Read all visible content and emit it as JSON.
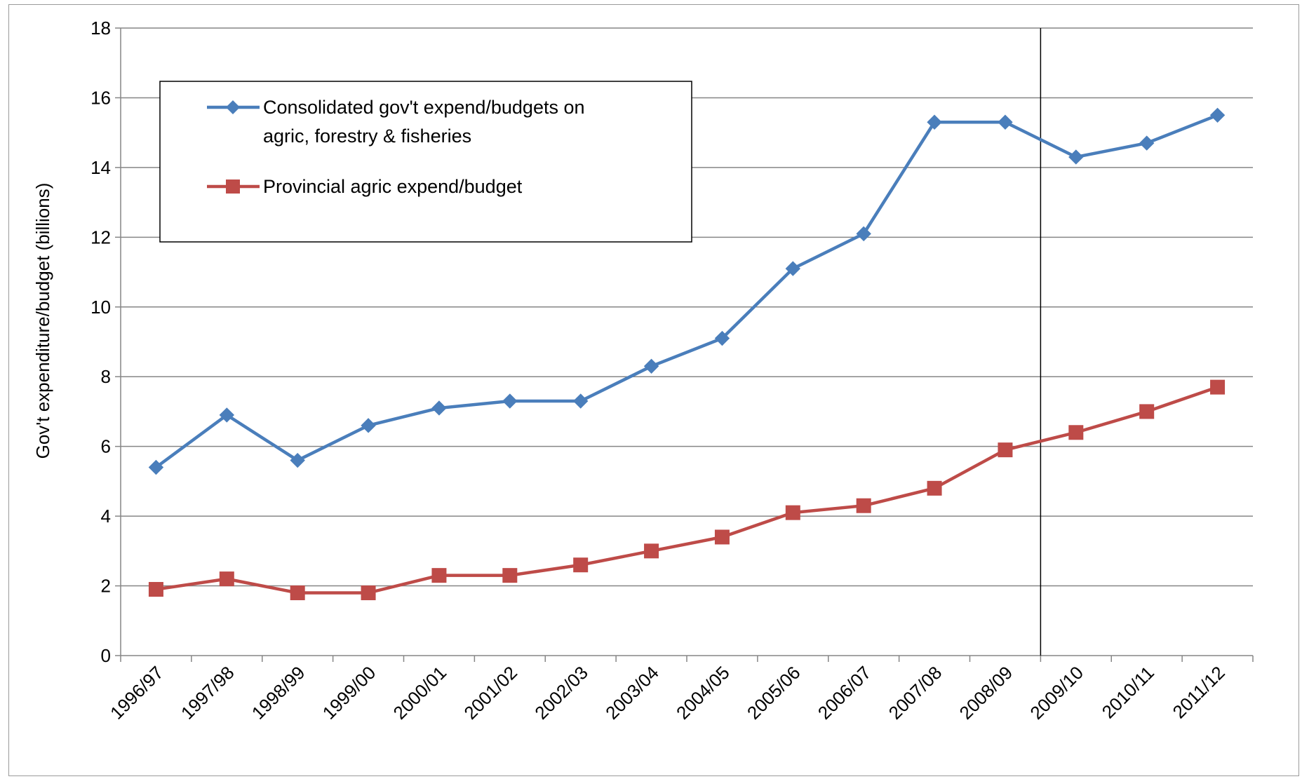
{
  "chart_data": {
    "type": "line",
    "title": "",
    "xlabel": "",
    "ylabel": "Gov't expenditure/budget  (billions)",
    "ylim": [
      0,
      18
    ],
    "yticks": [
      0,
      2,
      4,
      6,
      8,
      10,
      12,
      14,
      16,
      18
    ],
    "categories": [
      "1996/97",
      "1997/98",
      "1998/99",
      "1999/00",
      "2000/01",
      "2001/02",
      "2002/03",
      "2003/04",
      "2004/05",
      "2005/06",
      "2006/07",
      "2007/08",
      "2008/09",
      "2009/10",
      "2010/11",
      "2011/12"
    ],
    "grid": "horizontal",
    "legend_position": "top-left",
    "separator_line_category": "2009/10",
    "series": [
      {
        "name_lines": [
          "Consolidated gov't expend/budgets on",
          "agric, forestry & fisheries"
        ],
        "color": "#4a7ebb",
        "marker": "diamond",
        "values": [
          5.4,
          6.9,
          5.6,
          6.6,
          7.1,
          7.3,
          7.3,
          8.3,
          9.1,
          11.1,
          12.1,
          15.3,
          15.3,
          14.3,
          14.7,
          15.5
        ]
      },
      {
        "name_lines": [
          "Provincial agric expend/budget"
        ],
        "color": "#be4b48",
        "marker": "square",
        "values": [
          1.9,
          2.2,
          1.8,
          1.8,
          2.3,
          2.3,
          2.6,
          3.0,
          3.4,
          4.1,
          4.3,
          4.8,
          5.9,
          6.4,
          7.0,
          7.7
        ]
      }
    ]
  }
}
